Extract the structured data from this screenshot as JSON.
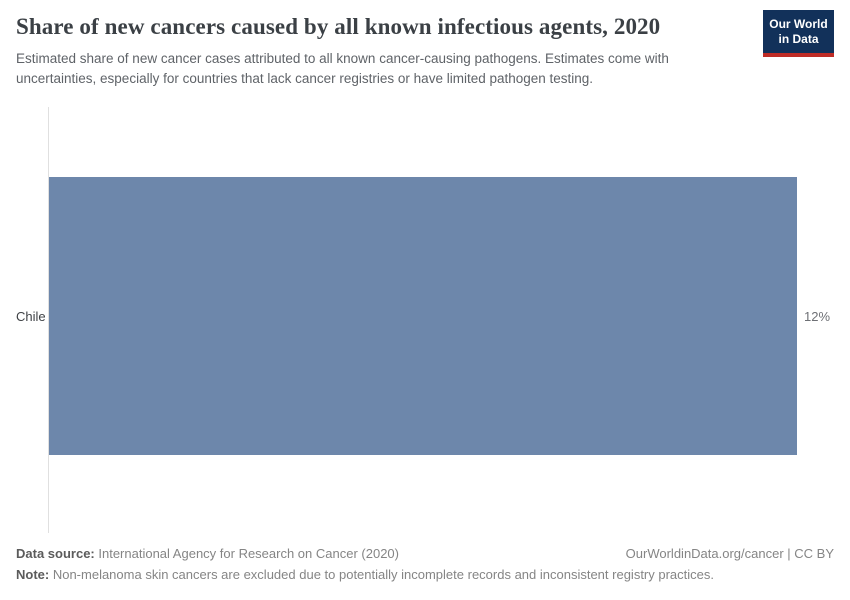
{
  "header": {
    "title": "Share of new cancers caused by all known infectious agents, 2020",
    "subtitle": "Estimated share of new cancer cases attributed to all known cancer-causing pathogens. Estimates come with uncertainties, especially for countries that lack cancer registries or have limited pathogen testing.",
    "logo": {
      "line1": "Our World",
      "line2": "in Data"
    }
  },
  "chart_data": {
    "type": "bar",
    "orientation": "horizontal",
    "title": "Share of new cancers caused by all known infectious agents, 2020",
    "categories": [
      "Chile"
    ],
    "values": [
      12
    ],
    "value_labels": [
      "12%"
    ],
    "xlabel": "",
    "ylabel": "",
    "xlim": [
      0,
      12
    ],
    "grid": false,
    "legend": "none",
    "bar_color": "#6d87ab",
    "axis_line_color": "#e0e0e0"
  },
  "footer": {
    "data_source_label": "Data source:",
    "data_source_text": " International Agency for Research on Cancer (2020)",
    "link_text": "OurWorldinData.org/cancer | CC BY",
    "note_label": "Note:",
    "note_text": " Non-melanoma skin cancers are excluded due to potentially incomplete records and inconsistent registry practices."
  },
  "colors": {
    "bar": "#6d87ab",
    "logo_background": "#12315a",
    "logo_stripe": "#bf2c26",
    "title_text": "#3b4045",
    "subtitle_text": "#5f6368",
    "footer_text": "#858585"
  }
}
